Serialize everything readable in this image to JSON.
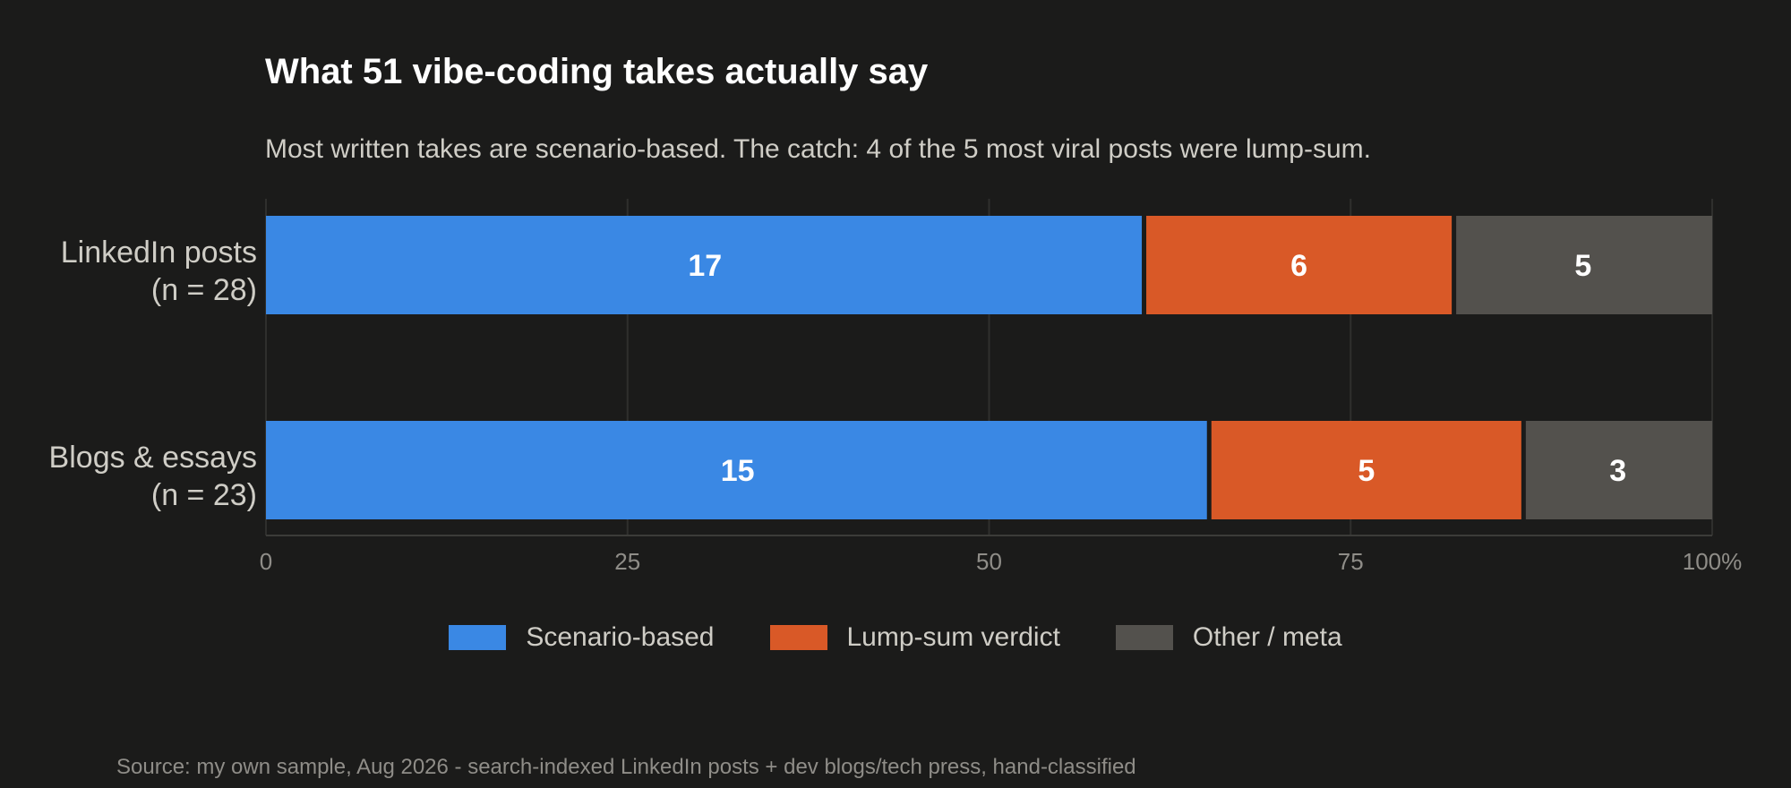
{
  "chart_data": {
    "type": "bar",
    "orientation": "horizontal",
    "stacked": true,
    "normalized_percent": true,
    "title": "What 51 vibe-coding takes actually say",
    "subtitle": "Most written takes are scenario-based. The catch: 4 of the 5 most viral posts were lump-sum.",
    "categories": [
      {
        "line1": "LinkedIn posts",
        "line2": "(n = 28)"
      },
      {
        "line1": "Blogs & essays",
        "line2": "(n = 23)"
      }
    ],
    "series": [
      {
        "name": "Scenario-based",
        "color": "#3a88e4",
        "values": [
          17,
          15
        ]
      },
      {
        "name": "Lump-sum verdict",
        "color": "#d95927",
        "values": [
          6,
          5
        ]
      },
      {
        "name": "Other / meta",
        "color": "#53514d",
        "values": [
          5,
          3
        ]
      }
    ],
    "xticks": [
      "0",
      "25",
      "50",
      "75",
      "100%"
    ],
    "xlim": [
      0,
      100
    ],
    "grid": true,
    "legend_position": "bottom",
    "source": "Source: my own sample, Aug 2026 - search-indexed LinkedIn posts + dev blogs/tech press, hand-classified"
  }
}
